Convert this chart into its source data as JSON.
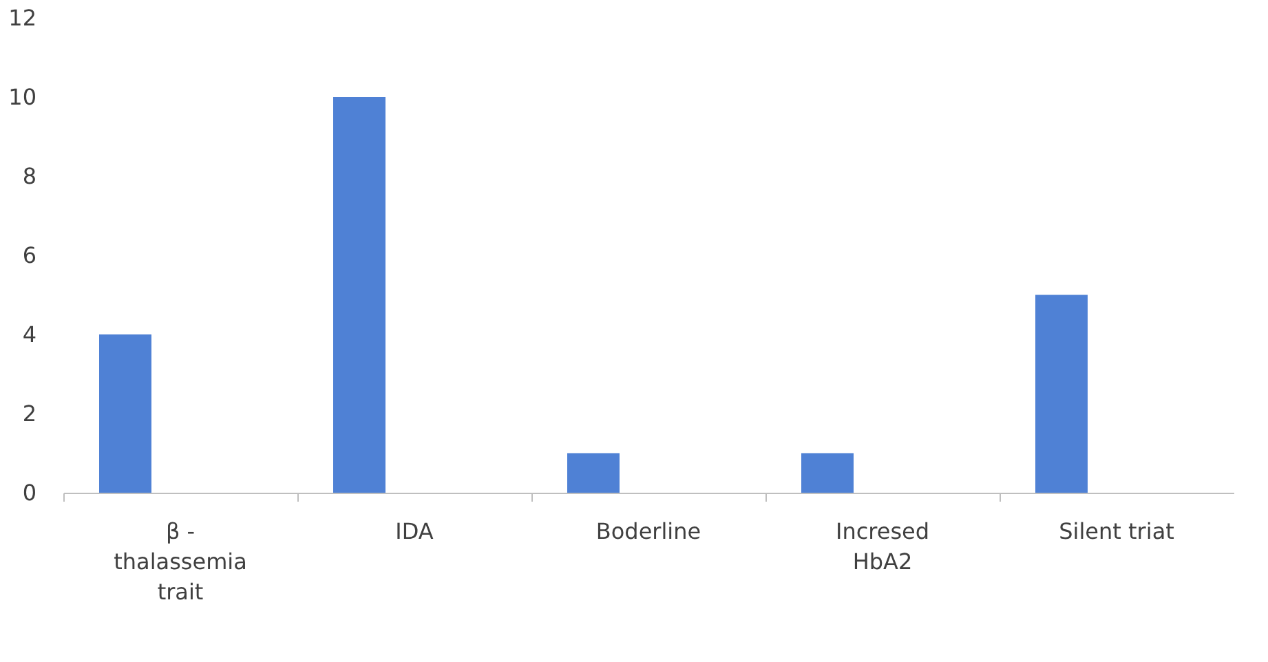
{
  "chart_data": {
    "type": "bar",
    "categories": [
      "β - thalassemia trait",
      "IDA",
      "Boderline",
      "Incresed HbA2",
      "Silent triat"
    ],
    "values": [
      4,
      10,
      1,
      1,
      5
    ],
    "color": "#4f81d5",
    "ylim": [
      0,
      12
    ],
    "yticks": [
      0,
      2,
      4,
      6,
      8,
      10,
      12
    ],
    "grid": false
  }
}
